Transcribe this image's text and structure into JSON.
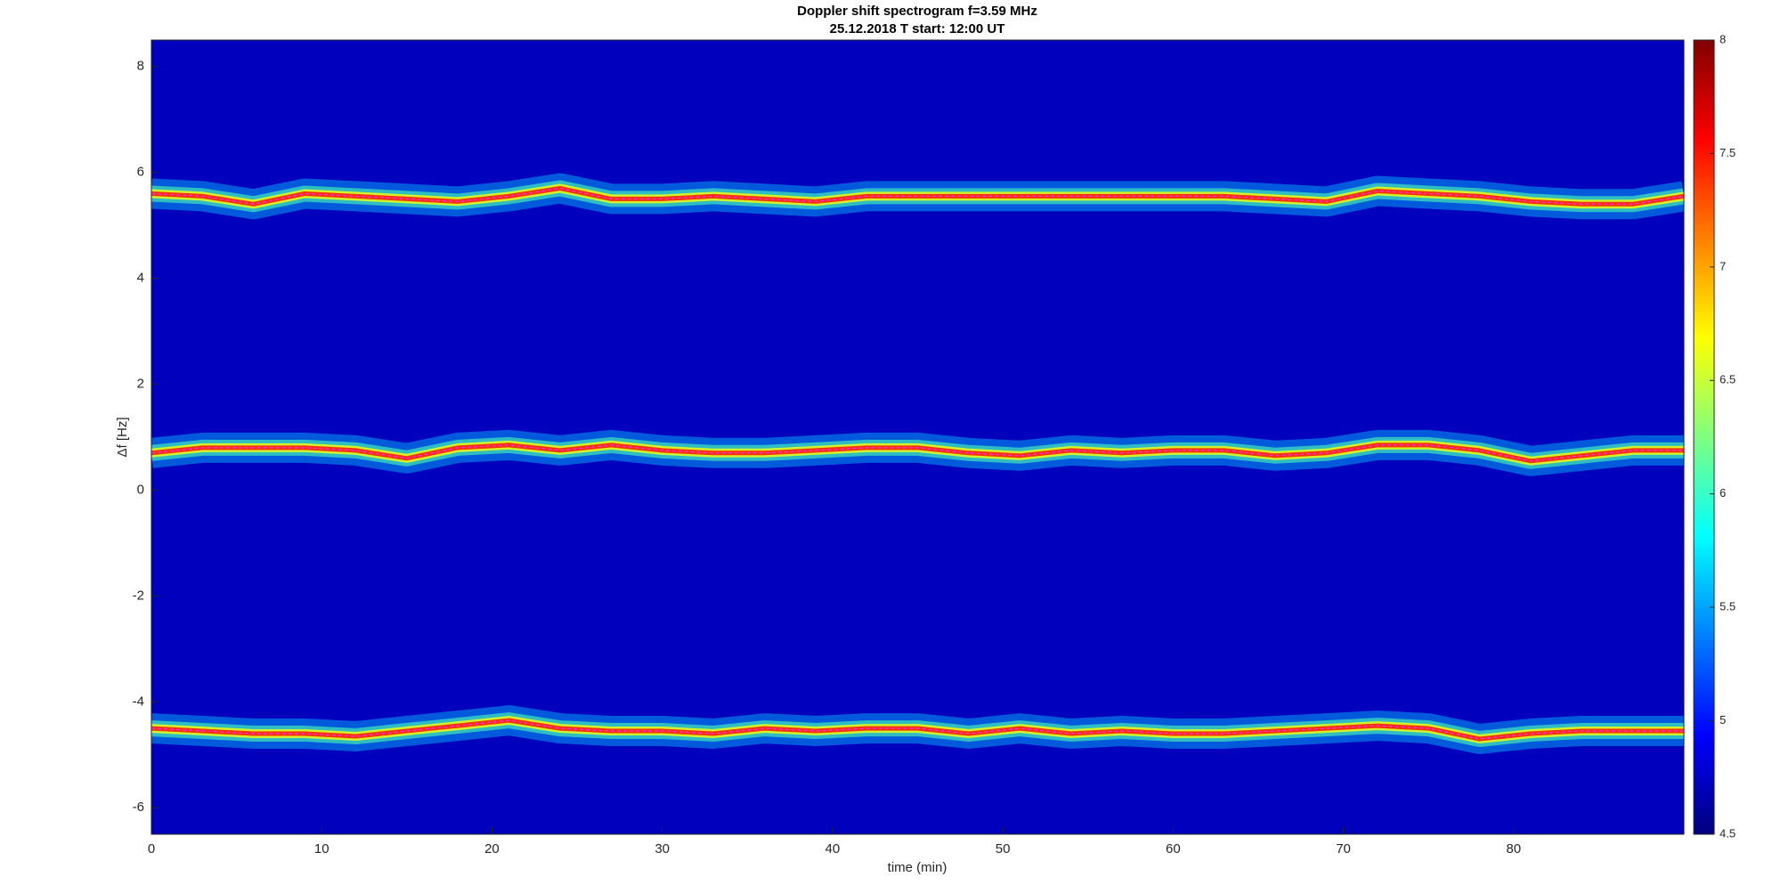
{
  "chart_data": {
    "type": "spectrogram",
    "title": "Doppler shift spectrogram f=3.59 MHz",
    "subtitle": "25.12.2018   T start: 12:00 UT",
    "xlabel": "time (min)",
    "ylabel": "Δf [Hz]",
    "xlim": [
      0,
      90
    ],
    "xticks": [
      0,
      10,
      20,
      30,
      40,
      50,
      60,
      70,
      80
    ],
    "ylim": [
      -6.5,
      8.5
    ],
    "yticks": [
      -6,
      -4,
      -2,
      0,
      2,
      4,
      6,
      8
    ],
    "colormap": "jet",
    "clim": [
      4.5,
      8
    ],
    "cticks": [
      4.5,
      5,
      5.5,
      6,
      6.5,
      7,
      7.5,
      8
    ],
    "x": [
      0,
      3,
      6,
      9,
      12,
      15,
      18,
      21,
      24,
      27,
      30,
      33,
      36,
      39,
      42,
      45,
      48,
      51,
      54,
      57,
      60,
      63,
      66,
      69,
      72,
      75,
      78,
      81,
      84,
      87,
      90
    ],
    "traces": [
      {
        "color": "#ff33cc",
        "values": [
          5.6,
          5.55,
          5.4,
          5.6,
          5.55,
          5.5,
          5.45,
          5.55,
          5.7,
          5.5,
          5.5,
          5.55,
          5.5,
          5.45,
          5.55,
          5.55,
          5.55,
          5.55,
          5.55,
          5.55,
          5.55,
          5.55,
          5.5,
          5.45,
          5.65,
          5.6,
          5.55,
          5.45,
          5.4,
          5.4,
          5.55
        ]
      },
      {
        "color": "#ff33cc",
        "values": [
          0.7,
          0.8,
          0.8,
          0.8,
          0.75,
          0.6,
          0.8,
          0.85,
          0.75,
          0.85,
          0.75,
          0.7,
          0.7,
          0.75,
          0.8,
          0.8,
          0.7,
          0.65,
          0.75,
          0.7,
          0.75,
          0.75,
          0.65,
          0.7,
          0.85,
          0.85,
          0.75,
          0.55,
          0.65,
          0.75,
          0.75
        ]
      },
      {
        "color": "#ff33cc",
        "values": [
          -4.5,
          -4.55,
          -4.6,
          -4.6,
          -4.65,
          -4.55,
          -4.45,
          -4.35,
          -4.5,
          -4.55,
          -4.55,
          -4.6,
          -4.5,
          -4.55,
          -4.5,
          -4.5,
          -4.6,
          -4.5,
          -4.6,
          -4.55,
          -4.6,
          -4.6,
          -4.55,
          -4.5,
          -4.45,
          -4.5,
          -4.7,
          -4.6,
          -4.55,
          -4.55,
          -4.55
        ]
      }
    ]
  }
}
